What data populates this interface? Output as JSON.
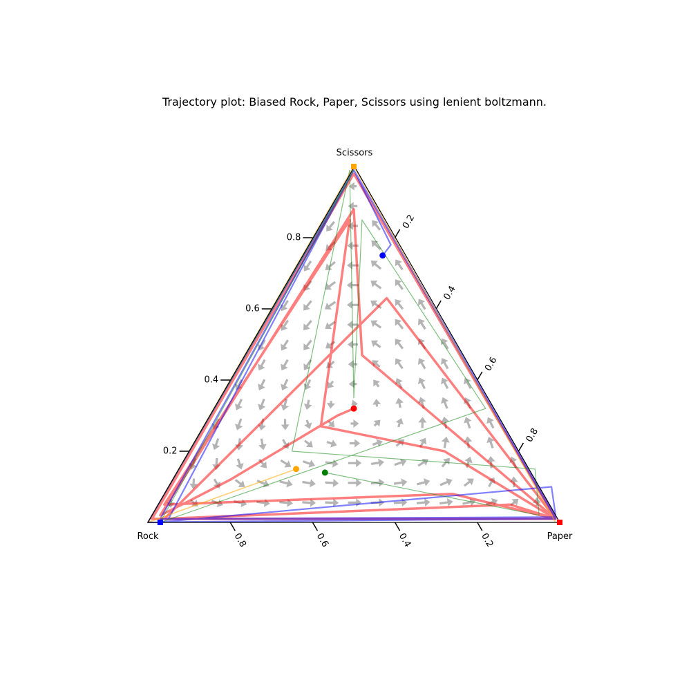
{
  "chart_data": {
    "type": "ternary-trajectory",
    "title": "Trajectory plot: Biased Rock, Paper, Scissors using lenient boltzmann.",
    "vertices": {
      "top": "Scissors",
      "left": "Rock",
      "right": "Paper"
    },
    "ticks": {
      "left_edge": [
        "0.2",
        "0.4",
        "0.6",
        "0.8"
      ],
      "right_edge": [
        "0.2",
        "0.4",
        "0.6",
        "0.8"
      ],
      "bottom_edge": [
        "0.8",
        "0.6",
        "0.4",
        "0.2"
      ]
    },
    "field_color": "#b4b4b4",
    "series": [
      {
        "color": "#ff0000",
        "start": [
          0.5,
          0.32
        ],
        "path": [
          [
            0.5,
            0.32
          ],
          [
            0.46,
            0.3
          ],
          [
            0.2,
            0.12
          ],
          [
            0.1,
            0.06
          ],
          [
            0.03,
            0.02
          ],
          [
            0.5,
            0.88
          ],
          [
            0.52,
            0.47
          ],
          [
            0.99,
            0.01
          ],
          [
            0.88,
            0.05
          ],
          [
            0.04,
            0.01
          ],
          [
            0.58,
            0.63
          ],
          [
            0.99,
            0.01
          ],
          [
            0.72,
            0.2
          ],
          [
            0.42,
            0.27
          ],
          [
            0.49,
            0.85
          ],
          [
            0.04,
            0.05
          ],
          [
            0.74,
            0.08
          ],
          [
            0.99,
            0.01
          ],
          [
            0.5,
            0.98
          ],
          [
            0.01,
            0.01
          ],
          [
            0.99,
            0.01
          ]
        ]
      },
      {
        "color": "#0000ff",
        "start": [
          0.57,
          0.75
        ],
        "path": [
          [
            0.57,
            0.75
          ],
          [
            0.59,
            0.78
          ],
          [
            0.5,
            0.99
          ],
          [
            0.99,
            0.01
          ],
          [
            0.03,
            0.01
          ],
          [
            0.5,
            0.99
          ],
          [
            0.99,
            0.02
          ],
          [
            0.98,
            0.1
          ],
          [
            0.03,
            0.001
          ],
          [
            0.99,
            0.01
          ],
          [
            0.5,
            0.99
          ],
          [
            0.05,
            0.01
          ],
          [
            0.99,
            0.015
          ],
          [
            0.5,
            0.99
          ],
          [
            0.0,
            0.0
          ],
          [
            0.03,
            0.0
          ]
        ]
      },
      {
        "color": "#008000",
        "start": [
          0.43,
          0.14
        ],
        "path": [
          [
            0.43,
            0.14
          ],
          [
            0.95,
            0.02
          ],
          [
            0.94,
            0.15
          ],
          [
            0.35,
            0.2
          ],
          [
            0.49,
            0.99
          ],
          [
            0.5,
            0.35
          ],
          [
            0.52,
            0.85
          ],
          [
            0.82,
            0.32
          ],
          [
            0.03,
            0.0
          ],
          [
            0.5,
            0.99
          ],
          [
            0.0,
            0.0
          ],
          [
            0.5,
            0.99
          ]
        ]
      },
      {
        "color": "#ffa500",
        "start": [
          0.36,
          0.15
        ],
        "path": [
          [
            0.36,
            0.15
          ],
          [
            0.0,
            0.0
          ],
          [
            0.5,
            1.0
          ],
          [
            0.99,
            0.0
          ]
        ]
      }
    ],
    "end_markers": [
      {
        "color": "#ff0000",
        "shape": "square",
        "point": [
          1.0,
          0.0
        ]
      },
      {
        "color": "#0000ff",
        "shape": "square",
        "point": [
          0.03,
          0.0
        ]
      },
      {
        "color": "#ffa500",
        "shape": "square",
        "point": [
          0.5,
          1.0
        ]
      }
    ]
  }
}
